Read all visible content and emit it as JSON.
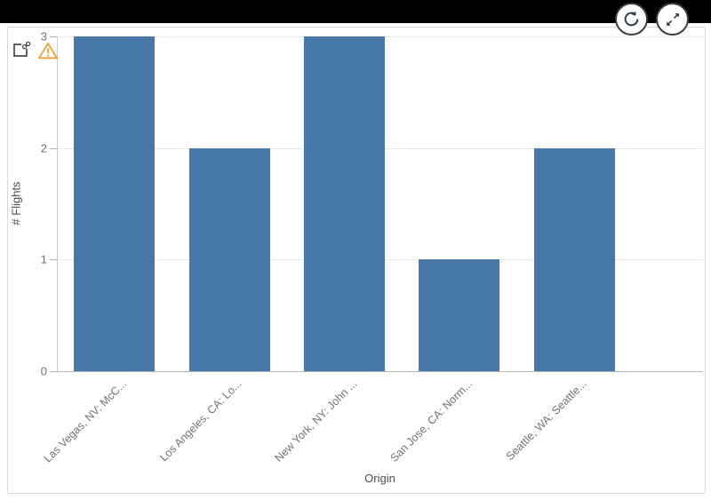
{
  "colors": {
    "bar": "#4878a8",
    "warning": "#ef9b33",
    "icon_dark": "#4a4a4a",
    "button_icon": "#2f3e4e",
    "grid": "#e8e8e8",
    "axis_line": "#b8b8b8",
    "tick_text": "#737373",
    "axis_title_text": "#4c4c4c"
  },
  "toolbar": {
    "buttons": [
      {
        "name": "refresh",
        "icon": "refresh-icon"
      },
      {
        "name": "expand",
        "icon": "expand-icon"
      }
    ]
  },
  "chart": {
    "indicators": [
      {
        "icon": "linked-object-icon"
      },
      {
        "icon": "warning-icon"
      }
    ]
  },
  "chart_data": {
    "type": "bar",
    "title": "",
    "categories": [
      "Las Vegas, NV: McC...",
      "Los Angeles, CA: Lo...",
      "New York, NY: John ...",
      "San Jose, CA: Norm...",
      "Seattle, WA: Seattle..."
    ],
    "values": [
      3,
      2,
      3,
      1,
      2
    ],
    "xlabel": "Origin",
    "ylabel": "# Flights",
    "ylim": [
      0,
      3
    ],
    "yticks": [
      0,
      1,
      2,
      3
    ],
    "grid": true,
    "legend": false,
    "bar_color": "#4878a8"
  }
}
